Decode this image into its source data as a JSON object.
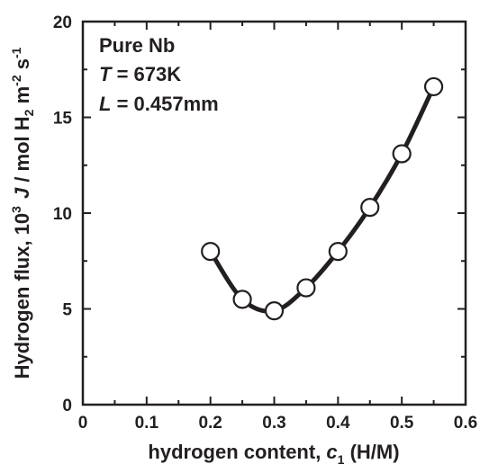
{
  "chart_data": {
    "type": "line",
    "x": [
      0.2,
      0.25,
      0.3,
      0.35,
      0.4,
      0.45,
      0.5,
      0.55
    ],
    "y": [
      8.0,
      5.5,
      4.9,
      6.1,
      8.0,
      10.3,
      13.1,
      16.6
    ],
    "curve": "smooth fit through points",
    "marker": "open circle",
    "xlim": [
      0,
      0.6
    ],
    "ylim": [
      0,
      20
    ],
    "xticks": [
      "0",
      "0.1",
      "0.2",
      "0.3",
      "0.4",
      "0.5",
      "0.6"
    ],
    "yticks": [
      "0",
      "5",
      "10",
      "15",
      "20"
    ],
    "xlabel": {
      "main": "hydrogen content, ",
      "var": "c",
      "sub": "1",
      "unit": " (H/M)"
    },
    "ylabel": {
      "main": "Hydrogen flux, 10",
      "sup": "3",
      "var": "J",
      "unit": " / mol H",
      "h_sub": "2",
      "m": " m",
      "m_sup": "-2",
      "s": " s",
      "s_sup": "-1"
    },
    "annotations": {
      "line1": "Pure Nb",
      "line2_var": "T",
      "line2_val": " = 673K",
      "line3_var": "L",
      "line3_val": " = 0.457mm"
    },
    "grid": false,
    "colors": {
      "ink": "#231f20",
      "marker_fill": "#ffffff"
    }
  }
}
